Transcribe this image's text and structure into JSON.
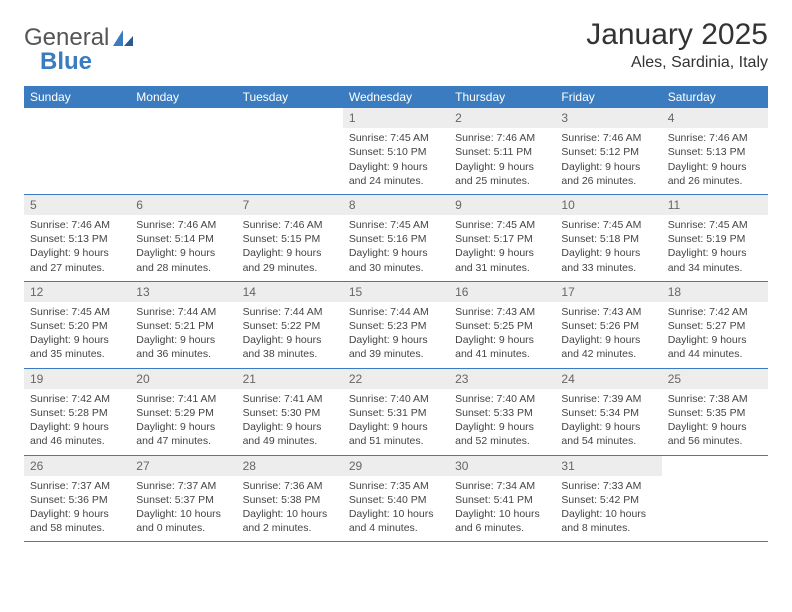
{
  "logo": {
    "text1": "General",
    "text2": "Blue"
  },
  "title": "January 2025",
  "location": "Ales, Sardinia, Italy",
  "colors": {
    "header_bg": "#3b7bbf",
    "header_text": "#ffffff",
    "daynum_bg": "#ededed",
    "daynum_text": "#666666",
    "border": "#3b7bbf",
    "body_text": "#444444"
  },
  "weekdays": [
    "Sunday",
    "Monday",
    "Tuesday",
    "Wednesday",
    "Thursday",
    "Friday",
    "Saturday"
  ],
  "weeks": [
    {
      "nums": [
        "",
        "",
        "",
        "1",
        "2",
        "3",
        "4"
      ],
      "cells": [
        "",
        "",
        "",
        "Sunrise: 7:45 AM\nSunset: 5:10 PM\nDaylight: 9 hours\nand 24 minutes.",
        "Sunrise: 7:46 AM\nSunset: 5:11 PM\nDaylight: 9 hours\nand 25 minutes.",
        "Sunrise: 7:46 AM\nSunset: 5:12 PM\nDaylight: 9 hours\nand 26 minutes.",
        "Sunrise: 7:46 AM\nSunset: 5:13 PM\nDaylight: 9 hours\nand 26 minutes."
      ]
    },
    {
      "nums": [
        "5",
        "6",
        "7",
        "8",
        "9",
        "10",
        "11"
      ],
      "cells": [
        "Sunrise: 7:46 AM\nSunset: 5:13 PM\nDaylight: 9 hours\nand 27 minutes.",
        "Sunrise: 7:46 AM\nSunset: 5:14 PM\nDaylight: 9 hours\nand 28 minutes.",
        "Sunrise: 7:46 AM\nSunset: 5:15 PM\nDaylight: 9 hours\nand 29 minutes.",
        "Sunrise: 7:45 AM\nSunset: 5:16 PM\nDaylight: 9 hours\nand 30 minutes.",
        "Sunrise: 7:45 AM\nSunset: 5:17 PM\nDaylight: 9 hours\nand 31 minutes.",
        "Sunrise: 7:45 AM\nSunset: 5:18 PM\nDaylight: 9 hours\nand 33 minutes.",
        "Sunrise: 7:45 AM\nSunset: 5:19 PM\nDaylight: 9 hours\nand 34 minutes."
      ]
    },
    {
      "nums": [
        "12",
        "13",
        "14",
        "15",
        "16",
        "17",
        "18"
      ],
      "cells": [
        "Sunrise: 7:45 AM\nSunset: 5:20 PM\nDaylight: 9 hours\nand 35 minutes.",
        "Sunrise: 7:44 AM\nSunset: 5:21 PM\nDaylight: 9 hours\nand 36 minutes.",
        "Sunrise: 7:44 AM\nSunset: 5:22 PM\nDaylight: 9 hours\nand 38 minutes.",
        "Sunrise: 7:44 AM\nSunset: 5:23 PM\nDaylight: 9 hours\nand 39 minutes.",
        "Sunrise: 7:43 AM\nSunset: 5:25 PM\nDaylight: 9 hours\nand 41 minutes.",
        "Sunrise: 7:43 AM\nSunset: 5:26 PM\nDaylight: 9 hours\nand 42 minutes.",
        "Sunrise: 7:42 AM\nSunset: 5:27 PM\nDaylight: 9 hours\nand 44 minutes."
      ]
    },
    {
      "nums": [
        "19",
        "20",
        "21",
        "22",
        "23",
        "24",
        "25"
      ],
      "cells": [
        "Sunrise: 7:42 AM\nSunset: 5:28 PM\nDaylight: 9 hours\nand 46 minutes.",
        "Sunrise: 7:41 AM\nSunset: 5:29 PM\nDaylight: 9 hours\nand 47 minutes.",
        "Sunrise: 7:41 AM\nSunset: 5:30 PM\nDaylight: 9 hours\nand 49 minutes.",
        "Sunrise: 7:40 AM\nSunset: 5:31 PM\nDaylight: 9 hours\nand 51 minutes.",
        "Sunrise: 7:40 AM\nSunset: 5:33 PM\nDaylight: 9 hours\nand 52 minutes.",
        "Sunrise: 7:39 AM\nSunset: 5:34 PM\nDaylight: 9 hours\nand 54 minutes.",
        "Sunrise: 7:38 AM\nSunset: 5:35 PM\nDaylight: 9 hours\nand 56 minutes."
      ]
    },
    {
      "nums": [
        "26",
        "27",
        "28",
        "29",
        "30",
        "31",
        ""
      ],
      "cells": [
        "Sunrise: 7:37 AM\nSunset: 5:36 PM\nDaylight: 9 hours\nand 58 minutes.",
        "Sunrise: 7:37 AM\nSunset: 5:37 PM\nDaylight: 10 hours\nand 0 minutes.",
        "Sunrise: 7:36 AM\nSunset: 5:38 PM\nDaylight: 10 hours\nand 2 minutes.",
        "Sunrise: 7:35 AM\nSunset: 5:40 PM\nDaylight: 10 hours\nand 4 minutes.",
        "Sunrise: 7:34 AM\nSunset: 5:41 PM\nDaylight: 10 hours\nand 6 minutes.",
        "Sunrise: 7:33 AM\nSunset: 5:42 PM\nDaylight: 10 hours\nand 8 minutes.",
        ""
      ]
    }
  ]
}
